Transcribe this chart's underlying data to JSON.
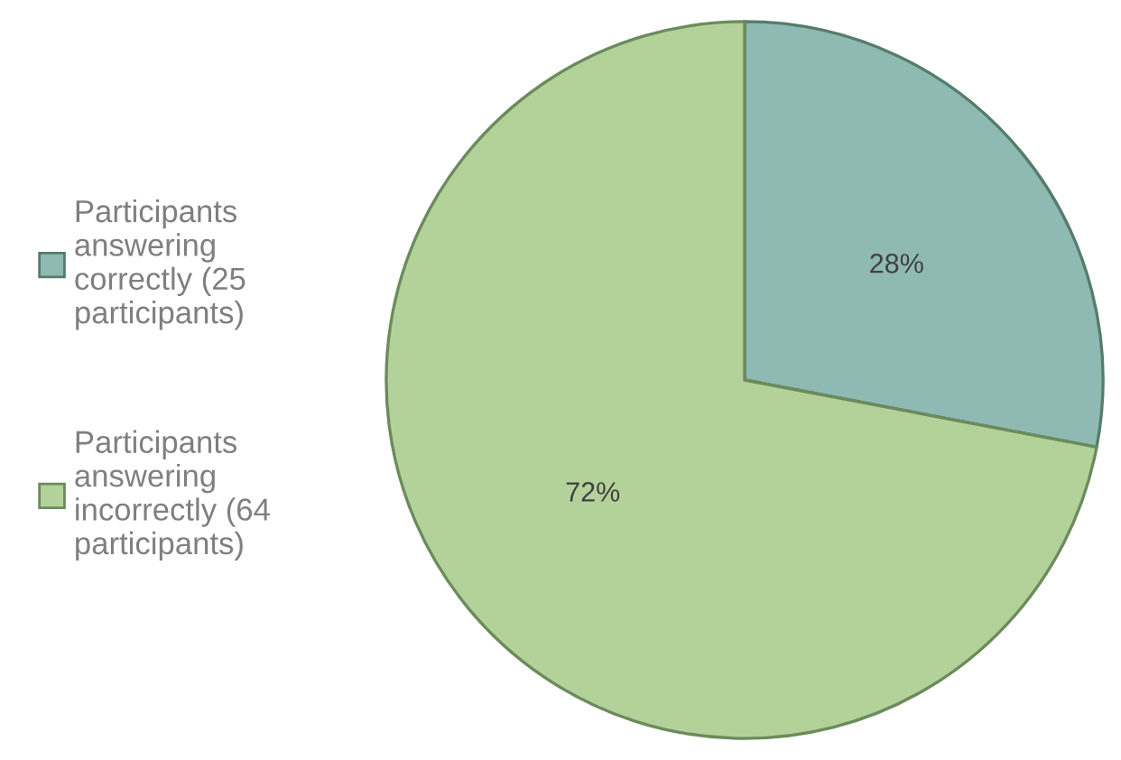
{
  "chart_data": {
    "type": "pie",
    "categories": [
      "Participants answering correctly (25 participants)",
      "Participants answering incorrectly (64 participants)"
    ],
    "values": [
      28,
      72
    ],
    "value_labels": [
      "28%",
      "72%"
    ],
    "colors": [
      "#8fbab3",
      "#b3d29a"
    ],
    "legend": "left"
  }
}
